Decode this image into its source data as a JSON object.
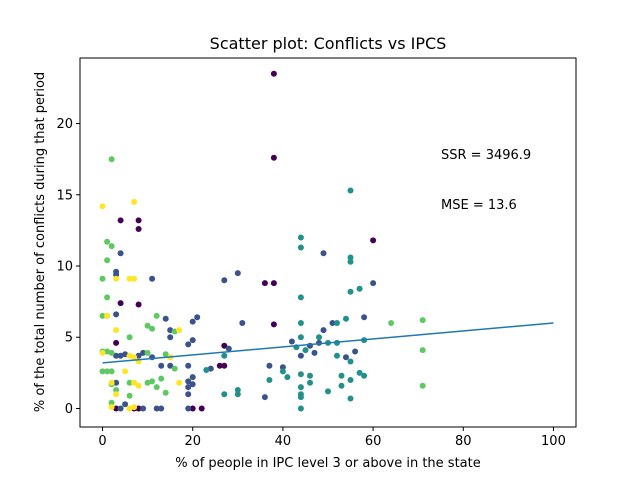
{
  "chart_data": {
    "type": "scatter",
    "title": "Scatter plot: Conflicts vs IPCS",
    "xlabel": "% of people in IPC level 3 or above in the state",
    "ylabel": "% of the total number of conflicts during that period",
    "xlim": [
      -5,
      105
    ],
    "ylim": [
      -1.3,
      24.6
    ],
    "xticks": [
      0,
      20,
      40,
      60,
      80,
      100
    ],
    "yticks": [
      0,
      5,
      10,
      15,
      20
    ],
    "grid": false,
    "annotations": [
      "SSR = 3496.9",
      "MSE = 13.6"
    ],
    "regression_line": {
      "x": [
        0,
        100
      ],
      "y": [
        3.2,
        6.0
      ]
    },
    "point_colors": {
      "a": "#440154",
      "b": "#3b528b",
      "c": "#21918c",
      "d": "#5ec962",
      "e": "#fde725"
    },
    "points": [
      [
        38,
        23.5,
        "a"
      ],
      [
        38,
        17.6,
        "a"
      ],
      [
        4,
        13.2,
        "a"
      ],
      [
        8,
        13.2,
        "a"
      ],
      [
        8,
        12.6,
        "a"
      ],
      [
        4,
        7.4,
        "a"
      ],
      [
        8,
        7.3,
        "a"
      ],
      [
        38,
        5.9,
        "a"
      ],
      [
        3,
        4.6,
        "a"
      ],
      [
        60,
        11.8,
        "a"
      ],
      [
        36,
        8.8,
        "a"
      ],
      [
        38,
        8.8,
        "a"
      ],
      [
        27,
        4.4,
        "a"
      ],
      [
        27,
        3.0,
        "a"
      ],
      [
        26,
        3.0,
        "a"
      ],
      [
        20,
        0.0,
        "a"
      ],
      [
        22,
        0.0,
        "a"
      ],
      [
        7,
        0.0,
        "a"
      ],
      [
        8,
        0.0,
        "a"
      ],
      [
        3,
        0.0,
        "a"
      ],
      [
        11,
        9.1,
        "b"
      ],
      [
        4,
        10.9,
        "b"
      ],
      [
        3,
        9.4,
        "b"
      ],
      [
        3,
        9.6,
        "b"
      ],
      [
        49,
        10.9,
        "b"
      ],
      [
        60,
        8.8,
        "b"
      ],
      [
        27,
        9.0,
        "b"
      ],
      [
        30,
        9.5,
        "b"
      ],
      [
        21,
        6.4,
        "b"
      ],
      [
        20,
        6.1,
        "b"
      ],
      [
        14,
        6.3,
        "b"
      ],
      [
        15,
        5.5,
        "b"
      ],
      [
        15,
        5.0,
        "b"
      ],
      [
        20,
        4.8,
        "b"
      ],
      [
        19,
        4.5,
        "b"
      ],
      [
        15,
        3.0,
        "b"
      ],
      [
        13,
        3.0,
        "b"
      ],
      [
        5,
        3.8,
        "b"
      ],
      [
        3,
        3.7,
        "b"
      ],
      [
        4,
        3.7,
        "b"
      ],
      [
        8,
        3.7,
        "b"
      ],
      [
        9,
        3.9,
        "b"
      ],
      [
        11,
        3.6,
        "b"
      ],
      [
        19,
        3.0,
        "b"
      ],
      [
        19,
        1.9,
        "b"
      ],
      [
        20,
        1.7,
        "b"
      ],
      [
        20,
        2.2,
        "b"
      ],
      [
        19,
        1.5,
        "b"
      ],
      [
        19,
        1.0,
        "b"
      ],
      [
        19,
        0.0,
        "b"
      ],
      [
        12,
        0.0,
        "b"
      ],
      [
        4,
        0.0,
        "b"
      ],
      [
        9,
        0.0,
        "b"
      ],
      [
        13,
        0.0,
        "b"
      ],
      [
        24,
        2.8,
        "b"
      ],
      [
        46,
        4.4,
        "b"
      ],
      [
        48,
        4.6,
        "b"
      ],
      [
        49,
        5.5,
        "b"
      ],
      [
        51,
        6.0,
        "b"
      ],
      [
        56,
        4.0,
        "b"
      ],
      [
        58,
        6.4,
        "b"
      ],
      [
        54,
        3.6,
        "b"
      ],
      [
        42,
        4.7,
        "b"
      ],
      [
        44,
        3.7,
        "b"
      ],
      [
        47,
        3.9,
        "b"
      ],
      [
        37,
        3.0,
        "b"
      ],
      [
        40,
        2.9,
        "b"
      ],
      [
        36,
        0.8,
        "b"
      ],
      [
        28,
        4.2,
        "b"
      ],
      [
        31,
        6.0,
        "b"
      ],
      [
        3,
        6.6,
        "b"
      ],
      [
        3,
        1.8,
        "b"
      ],
      [
        5,
        0.3,
        "b"
      ],
      [
        55,
        15.3,
        "c"
      ],
      [
        55,
        10.6,
        "c"
      ],
      [
        55,
        10.3,
        "c"
      ],
      [
        44,
        12.0,
        "c"
      ],
      [
        44,
        11.3,
        "c"
      ],
      [
        55,
        8.2,
        "c"
      ],
      [
        57,
        8.4,
        "c"
      ],
      [
        44,
        7.8,
        "c"
      ],
      [
        44,
        6.0,
        "c"
      ],
      [
        52,
        6.0,
        "c"
      ],
      [
        54,
        6.3,
        "c"
      ],
      [
        48,
        5.0,
        "c"
      ],
      [
        52,
        4.6,
        "c"
      ],
      [
        50,
        4.6,
        "c"
      ],
      [
        58,
        4.8,
        "c"
      ],
      [
        55,
        3.3,
        "c"
      ],
      [
        57,
        2.5,
        "c"
      ],
      [
        58,
        2.3,
        "c"
      ],
      [
        53,
        2.3,
        "c"
      ],
      [
        55,
        2.0,
        "c"
      ],
      [
        53,
        1.6,
        "c"
      ],
      [
        50,
        1.2,
        "c"
      ],
      [
        55,
        0.7,
        "c"
      ],
      [
        46,
        2.3,
        "c"
      ],
      [
        46,
        1.8,
        "c"
      ],
      [
        44,
        2.4,
        "c"
      ],
      [
        44,
        1.5,
        "c"
      ],
      [
        44,
        1.0,
        "c"
      ],
      [
        44,
        0.8,
        "c"
      ],
      [
        44,
        0.0,
        "c"
      ],
      [
        41,
        2.2,
        "c"
      ],
      [
        40,
        2.6,
        "c"
      ],
      [
        37,
        2.0,
        "c"
      ],
      [
        30,
        1.3,
        "c"
      ],
      [
        30,
        1.0,
        "c"
      ],
      [
        27,
        1.0,
        "c"
      ],
      [
        23,
        2.7,
        "c"
      ],
      [
        27,
        3.7,
        "c"
      ],
      [
        43,
        4.3,
        "c"
      ],
      [
        44,
        5.0,
        "c"
      ],
      [
        45,
        4.1,
        "c"
      ],
      [
        52,
        3.7,
        "c"
      ],
      [
        2,
        17.5,
        "d"
      ],
      [
        1,
        11.7,
        "d"
      ],
      [
        2,
        11.4,
        "d"
      ],
      [
        1,
        10.4,
        "d"
      ],
      [
        0,
        9.1,
        "d"
      ],
      [
        1,
        7.8,
        "d"
      ],
      [
        0,
        6.5,
        "d"
      ],
      [
        1,
        6.5,
        "d"
      ],
      [
        0,
        4.0,
        "d"
      ],
      [
        1,
        4.0,
        "d"
      ],
      [
        2,
        3.9,
        "d"
      ],
      [
        6,
        5.0,
        "d"
      ],
      [
        10,
        5.8,
        "d"
      ],
      [
        11,
        5.6,
        "d"
      ],
      [
        12,
        6.5,
        "d"
      ],
      [
        16,
        5.4,
        "d"
      ],
      [
        0,
        2.6,
        "d"
      ],
      [
        2,
        2.6,
        "d"
      ],
      [
        1,
        2.6,
        "d"
      ],
      [
        2,
        1.7,
        "d"
      ],
      [
        3,
        1.3,
        "d"
      ],
      [
        2,
        0.4,
        "d"
      ],
      [
        6,
        0.9,
        "d"
      ],
      [
        6,
        1.8,
        "d"
      ],
      [
        10,
        1.8,
        "d"
      ],
      [
        11,
        1.9,
        "d"
      ],
      [
        12,
        1.5,
        "d"
      ],
      [
        14,
        1.1,
        "d"
      ],
      [
        13,
        2.1,
        "d"
      ],
      [
        16,
        2.8,
        "d"
      ],
      [
        10,
        3.9,
        "d"
      ],
      [
        14,
        3.8,
        "d"
      ],
      [
        71,
        6.2,
        "d"
      ],
      [
        71,
        4.1,
        "d"
      ],
      [
        64,
        6.0,
        "d"
      ],
      [
        71,
        1.6,
        "d"
      ],
      [
        0,
        14.2,
        "e"
      ],
      [
        7,
        14.5,
        "e"
      ],
      [
        3,
        9.1,
        "e"
      ],
      [
        6,
        9.1,
        "e"
      ],
      [
        7,
        9.1,
        "e"
      ],
      [
        3,
        5.5,
        "e"
      ],
      [
        6,
        3.7,
        "e"
      ],
      [
        7,
        3.6,
        "e"
      ],
      [
        8,
        3.3,
        "e"
      ],
      [
        5,
        2.6,
        "e"
      ],
      [
        2,
        1.8,
        "e"
      ],
      [
        3,
        1.0,
        "e"
      ],
      [
        7,
        1.8,
        "e"
      ],
      [
        8,
        1.6,
        "e"
      ],
      [
        6,
        0.0,
        "e"
      ],
      [
        7,
        0.1,
        "e"
      ],
      [
        2,
        0.1,
        "e"
      ],
      [
        17,
        1.8,
        "e"
      ],
      [
        17,
        5.5,
        "e"
      ],
      [
        15,
        3.6,
        "e"
      ],
      [
        0,
        3.9,
        "e"
      ],
      [
        1,
        6.5,
        "e"
      ]
    ]
  }
}
